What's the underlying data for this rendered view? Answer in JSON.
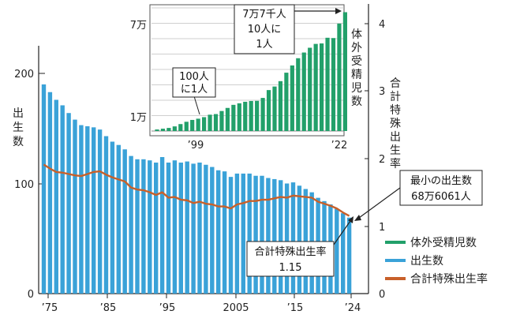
{
  "chart_data": [
    {
      "type": "bar",
      "chart": "main",
      "ylabel": "出生数",
      "ylabel_right": "合計特殊出生率",
      "x_tick_labels": [
        "’75",
        "’85",
        "’95",
        "2005",
        "’15",
        "’24"
      ],
      "y_tick_labels": [
        "200",
        "100",
        "0"
      ],
      "y_right_tick_labels": [
        "4",
        "3",
        "2",
        "1",
        "0"
      ],
      "ylim": [
        0,
        230
      ],
      "y_right_lim": [
        0,
        4.3
      ],
      "grid": false,
      "legend_position": "bottom-right",
      "categories": [
        1975,
        1976,
        1977,
        1978,
        1979,
        1980,
        1981,
        1982,
        1983,
        1984,
        1985,
        1986,
        1987,
        1988,
        1989,
        1990,
        1991,
        1992,
        1993,
        1994,
        1995,
        1996,
        1997,
        1998,
        1999,
        2000,
        2001,
        2002,
        2003,
        2004,
        2005,
        2006,
        2007,
        2008,
        2009,
        2010,
        2011,
        2012,
        2013,
        2014,
        2015,
        2016,
        2017,
        2018,
        2019,
        2020,
        2021,
        2022,
        2023,
        2024
      ],
      "series": [
        {
          "name": "出生数",
          "color": "#3aa2d8",
          "values": [
            190,
            183,
            176,
            171,
            164,
            158,
            153,
            152,
            151,
            149,
            143,
            138,
            135,
            131,
            125,
            122,
            122,
            121,
            119,
            124,
            119,
            121,
            119,
            120,
            118,
            119,
            117,
            115,
            112,
            111,
            106,
            109,
            109,
            109,
            107,
            107,
            105,
            104,
            103,
            100,
            101,
            98,
            95,
            92,
            87,
            84,
            81,
            77,
            73,
            69
          ]
        },
        {
          "name": "合計特殊出生率",
          "color": "#c8602a",
          "values": [
            1.91,
            1.85,
            1.8,
            1.79,
            1.77,
            1.75,
            1.74,
            1.77,
            1.8,
            1.81,
            1.76,
            1.72,
            1.69,
            1.66,
            1.57,
            1.54,
            1.53,
            1.5,
            1.46,
            1.5,
            1.42,
            1.43,
            1.39,
            1.38,
            1.34,
            1.36,
            1.33,
            1.32,
            1.29,
            1.29,
            1.26,
            1.32,
            1.34,
            1.37,
            1.37,
            1.39,
            1.39,
            1.41,
            1.43,
            1.42,
            1.45,
            1.44,
            1.43,
            1.42,
            1.36,
            1.33,
            1.3,
            1.26,
            1.2,
            1.15
          ]
        }
      ],
      "annotations": [
        {
          "id": "min-births",
          "lines": [
            "最小の出生数",
            "68万6061人"
          ]
        },
        {
          "id": "tfr",
          "lines": [
            "合計特殊出生率",
            "1.15"
          ]
        }
      ]
    },
    {
      "type": "bar",
      "chart": "inset",
      "ylabel": "体外受精児数",
      "x_tick_labels": [
        "’99",
        "’22"
      ],
      "y_tick_labels": [
        "7万",
        "1万"
      ],
      "ylim": [
        0,
        80000
      ],
      "grid": true,
      "categories": [
        1990,
        1991,
        1992,
        1993,
        1994,
        1995,
        1996,
        1997,
        1998,
        1999,
        2000,
        2001,
        2002,
        2003,
        2004,
        2005,
        2006,
        2007,
        2008,
        2009,
        2010,
        2011,
        2012,
        2013,
        2014,
        2015,
        2016,
        2017,
        2018,
        2019,
        2020,
        2021,
        2022
      ],
      "series": [
        {
          "name": "体外受精児数",
          "color": "#22a06a",
          "values": [
            1000,
            1500,
            2000,
            3000,
            4500,
            6000,
            7200,
            8000,
            9000,
            10600,
            11000,
            13000,
            15000,
            17000,
            18000,
            19000,
            19500,
            19600,
            21500,
            26600,
            28900,
            32400,
            37900,
            42600,
            47300,
            51000,
            54100,
            56600,
            56900,
            60600,
            60400,
            69800,
            77200
          ]
        }
      ],
      "annotations": [
        {
          "id": "ratio-1999",
          "lines": [
            "100人",
            "に1人"
          ]
        },
        {
          "id": "ratio-2022",
          "lines": [
            "7万7千人",
            "10人に",
            "1人"
          ]
        }
      ]
    }
  ],
  "legend": [
    {
      "label": "体外受精児数",
      "color": "#22a06a"
    },
    {
      "label": "出生数",
      "color": "#3aa2d8"
    },
    {
      "label": "合計特殊出生率",
      "color": "#c8602a"
    }
  ]
}
